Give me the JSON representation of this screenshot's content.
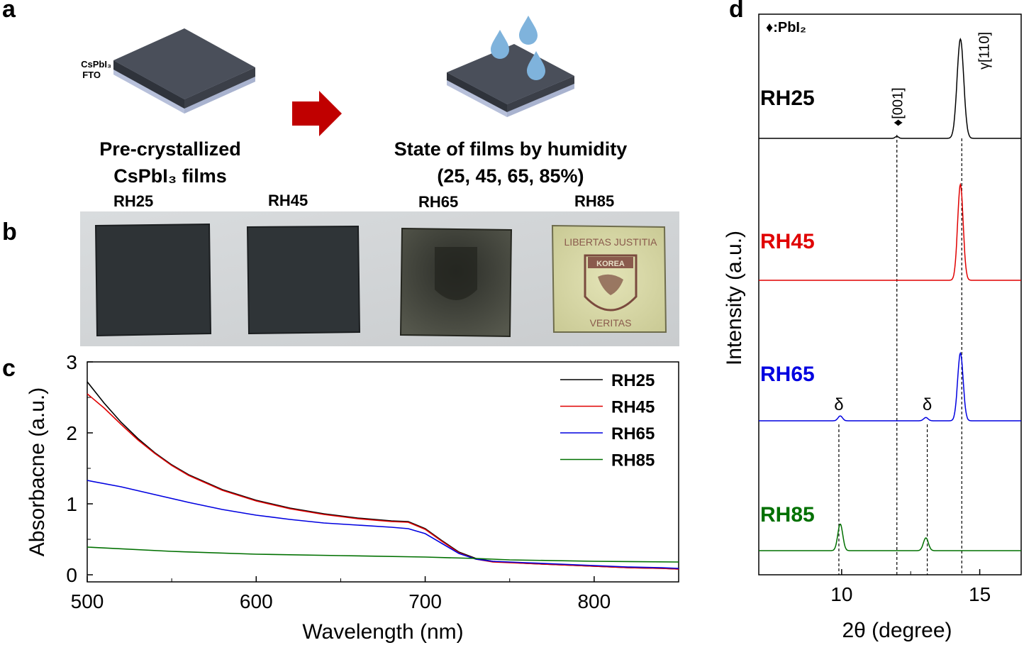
{
  "panel_a": {
    "letter": "a",
    "layer_label_top": "CsPbI₃",
    "layer_label_bottom": "FTO",
    "left_caption_line1": "Pre-crystallized",
    "left_caption_line2": "CsPbI₃ films",
    "right_caption_line1": "State of films  by humidity",
    "right_caption_line2": "(25, 45, 65, 85%)"
  },
  "panel_b": {
    "letter": "b",
    "photos": [
      {
        "label": "RH25",
        "film_color": "#33393c"
      },
      {
        "label": "RH45",
        "film_color": "#33393c"
      },
      {
        "label": "RH65",
        "film_color": "#3a3a32"
      },
      {
        "label": "RH85",
        "film_color": "#d6d6a4"
      }
    ],
    "logo_text_top": "LIBERTAS JUSTITIA",
    "logo_text_bottom": "VERITAS",
    "logo_banner": "KOREA"
  },
  "panel_c": {
    "letter": "c",
    "chart_data": {
      "type": "line",
      "xlabel": "Wavelength (nm)",
      "ylabel": "Absorbacne (a.u.)",
      "xlim": [
        500,
        850
      ],
      "ylim": [
        -0.1,
        3.0
      ],
      "xticks": [
        500,
        600,
        700,
        800
      ],
      "yticks": [
        0,
        1,
        2,
        3
      ],
      "legend_position": "top-right",
      "series": [
        {
          "name": "RH25",
          "color": "#000000",
          "x": [
            500,
            510,
            520,
            530,
            540,
            550,
            560,
            580,
            600,
            620,
            640,
            660,
            680,
            690,
            700,
            710,
            720,
            730,
            740,
            760,
            780,
            800,
            820,
            840,
            850
          ],
          "y": [
            2.72,
            2.42,
            2.15,
            1.92,
            1.72,
            1.55,
            1.41,
            1.2,
            1.05,
            0.94,
            0.86,
            0.8,
            0.76,
            0.75,
            0.65,
            0.48,
            0.32,
            0.23,
            0.19,
            0.16,
            0.14,
            0.12,
            0.1,
            0.09,
            0.08
          ]
        },
        {
          "name": "RH45",
          "color": "#e00000",
          "x": [
            500,
            510,
            520,
            530,
            540,
            550,
            560,
            580,
            600,
            620,
            640,
            660,
            680,
            690,
            700,
            710,
            720,
            730,
            740,
            760,
            780,
            800,
            820,
            840,
            850
          ],
          "y": [
            2.55,
            2.35,
            2.12,
            1.9,
            1.71,
            1.54,
            1.4,
            1.19,
            1.04,
            0.93,
            0.85,
            0.79,
            0.75,
            0.74,
            0.64,
            0.47,
            0.31,
            0.22,
            0.18,
            0.16,
            0.14,
            0.12,
            0.1,
            0.09,
            0.08
          ]
        },
        {
          "name": "RH65",
          "color": "#0000e0",
          "x": [
            500,
            520,
            540,
            560,
            580,
            600,
            620,
            640,
            660,
            680,
            690,
            700,
            710,
            720,
            730,
            740,
            760,
            780,
            800,
            820,
            840,
            850
          ],
          "y": [
            1.33,
            1.24,
            1.13,
            1.02,
            0.92,
            0.84,
            0.78,
            0.73,
            0.7,
            0.67,
            0.65,
            0.58,
            0.44,
            0.3,
            0.22,
            0.19,
            0.17,
            0.15,
            0.13,
            0.11,
            0.1,
            0.09
          ]
        },
        {
          "name": "RH85",
          "color": "#007000",
          "x": [
            500,
            550,
            600,
            650,
            700,
            730,
            750,
            800,
            850
          ],
          "y": [
            0.39,
            0.33,
            0.29,
            0.27,
            0.25,
            0.23,
            0.21,
            0.19,
            0.18
          ]
        }
      ]
    }
  },
  "panel_d": {
    "letter": "d",
    "legend_marker": "♦:PbI₂",
    "chart_data": {
      "type": "line",
      "xlabel": "2θ (degree)",
      "ylabel": "Intensity (a.u.)",
      "xlim": [
        7,
        16.5
      ],
      "xticks": [
        10,
        15
      ],
      "series": [
        {
          "name": "RH25",
          "color": "#000000",
          "baseline": 0.0,
          "peaks": [
            {
              "x": 14.3,
              "height": 1.0,
              "width": 0.12
            },
            {
              "x": 12.0,
              "height": 0.02,
              "width": 0.06
            }
          ]
        },
        {
          "name": "RH45",
          "color": "#e00000",
          "baseline": 0.0,
          "peaks": [
            {
              "x": 14.3,
              "height": 1.0,
              "width": 0.1
            }
          ]
        },
        {
          "name": "RH65",
          "color": "#0000e0",
          "baseline": 0.0,
          "peaks": [
            {
              "x": 14.3,
              "height": 0.83,
              "width": 0.1
            },
            {
              "x": 9.95,
              "height": 0.06,
              "width": 0.08
            },
            {
              "x": 13.05,
              "height": 0.04,
              "width": 0.08
            }
          ]
        },
        {
          "name": "RH85",
          "color": "#007000",
          "baseline": 0.0,
          "peaks": [
            {
              "x": 9.95,
              "height": 0.25,
              "width": 0.09
            },
            {
              "x": 13.05,
              "height": 0.12,
              "width": 0.09
            }
          ]
        }
      ],
      "reference_lines": [
        {
          "x": 9.9,
          "label": "δ"
        },
        {
          "x": 12.0,
          "label": "♦[001]"
        },
        {
          "x": 13.1,
          "label": "δ"
        },
        {
          "x": 14.35,
          "label": "γ[110]"
        }
      ]
    }
  }
}
